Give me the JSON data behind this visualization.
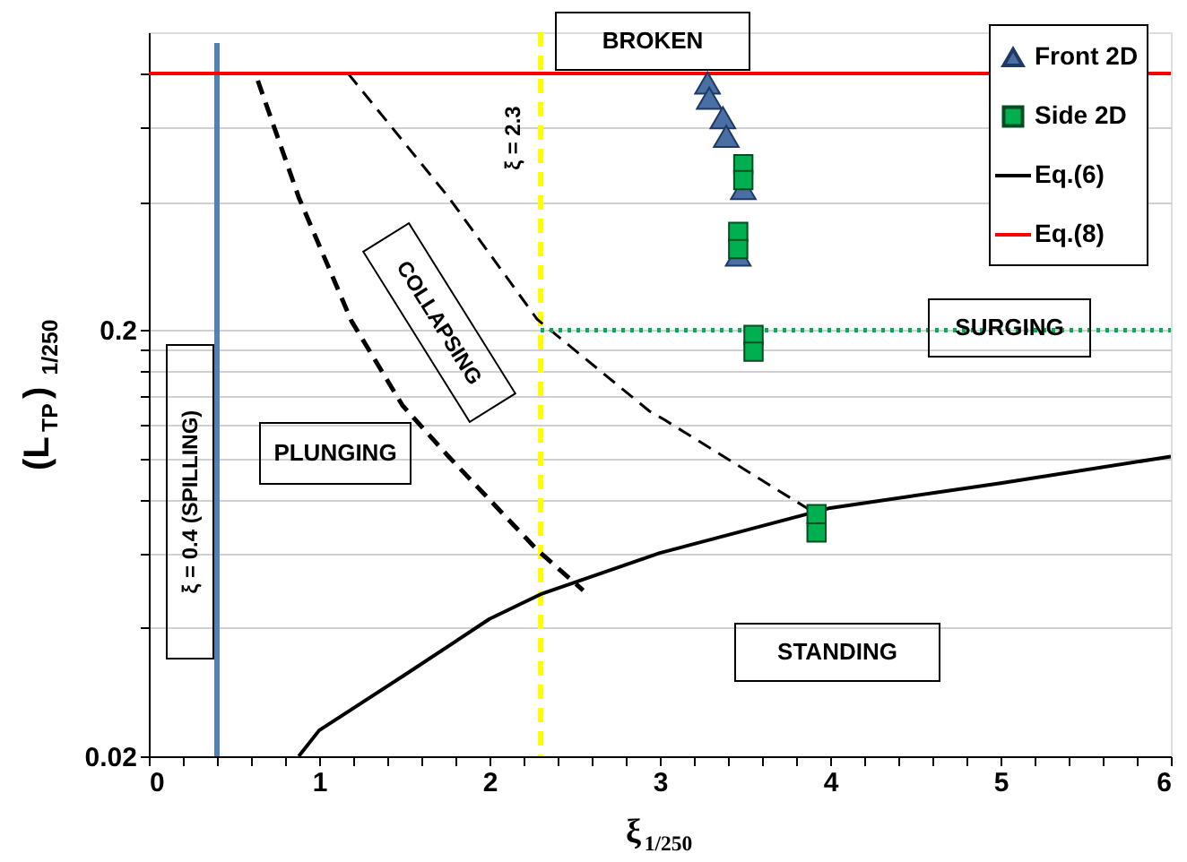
{
  "chart_data": {
    "type": "line",
    "xlabel": "ξ$_{1/250}$",
    "ylabel": "(L$_{TP}$)$_{1/250}$",
    "xlim": [
      0,
      6
    ],
    "ylim": [
      0.02,
      1
    ],
    "log": "y",
    "grid": "y",
    "legend": "top right",
    "xticks": [
      0,
      {
        "value": 0.2,
        "label": null
      },
      {
        "value": 0.4,
        "label": null
      },
      {
        "value": 0.6,
        "label": null
      },
      {
        "value": 0.8,
        "label": null
      },
      1,
      {
        "value": 1.2,
        "label": null
      },
      {
        "value": 1.4,
        "label": null
      },
      {
        "value": 1.6,
        "label": null
      },
      {
        "value": 1.8,
        "label": null
      },
      2,
      {
        "value": 2.2,
        "label": null
      },
      {
        "value": 2.4,
        "label": null
      },
      {
        "value": 2.6,
        "label": null
      },
      {
        "value": 2.8,
        "label": null
      },
      3,
      {
        "value": 3.2,
        "label": null
      },
      {
        "value": 3.4,
        "label": null
      },
      {
        "value": 3.6,
        "label": null
      },
      {
        "value": 3.8,
        "label": null
      },
      4,
      {
        "value": 4.2,
        "label": null
      },
      {
        "value": 4.4,
        "label": null
      },
      {
        "value": 4.6,
        "label": null
      },
      {
        "value": 4.8,
        "label": null
      },
      5,
      {
        "value": 5.2,
        "label": null
      },
      {
        "value": 5.4,
        "label": null
      },
      {
        "value": 5.6,
        "label": null
      },
      {
        "value": 5.8,
        "label": null
      },
      6
    ],
    "yticks": [
      0.02,
      {
        "value": 0.04,
        "label": null
      },
      {
        "value": 0.06,
        "label": null
      },
      {
        "value": 0.08,
        "label": null
      },
      {
        "value": 0.1,
        "label": null
      },
      {
        "value": 0.12,
        "label": null
      },
      {
        "value": 0.14,
        "label": null
      },
      {
        "value": 0.16,
        "label": null
      },
      {
        "value": 0.18,
        "label": null
      },
      0.2,
      {
        "value": 0.4,
        "label": null
      },
      {
        "value": 0.6,
        "label": null
      },
      {
        "value": 0.8,
        "label": null
      }
    ],
    "series": [
      {
        "type": "line",
        "color": "#000000",
        "line_style": "dashed",
        "x": [
          0.64,
          0.88,
          1.19,
          1.49,
          1.76,
          2.28,
          2.55
        ],
        "values": [
          0.77,
          0.41,
          0.21,
          0.133,
          0.101,
          0.061,
          0.049
        ]
      },
      {
        "type": "line",
        "color": "#000000",
        "line_style": "dashed",
        "x": [
          1.17,
          1.76,
          2.28,
          2.94,
          3.03,
          3.92
        ],
        "values": [
          0.8,
          0.41,
          0.212,
          0.129,
          0.123,
          0.074
        ]
      },
      {
        "type": "line",
        "color": "#00b050",
        "line_style": "dotted",
        "x": [
          2.3,
          6
        ],
        "values": [
          0.2,
          0.2
        ]
      },
      {
        "type": "scatter",
        "name": "Front 2D",
        "color": "#4a6fa5",
        "marker": "triangle",
        "x": [
          3.28,
          3.29,
          3.37,
          3.39,
          3.49,
          3.46
        ],
        "values": [
          0.76,
          0.7,
          0.63,
          0.57,
          0.43,
          0.3
        ]
      },
      {
        "type": "scatter",
        "name": "Side 2D",
        "color": "#00b050",
        "marker": "square",
        "x": [
          3.49,
          3.49,
          3.46,
          3.46,
          3.55,
          3.55,
          3.92,
          3.92
        ],
        "values": [
          0.49,
          0.45,
          0.34,
          0.31,
          0.195,
          0.178,
          0.074,
          0.067
        ]
      },
      {
        "name": "Eq.(6)",
        "color": "#000000",
        "line_style": "solid",
        "x": [
          0.88,
          1,
          1.5,
          2,
          2.3,
          3,
          4,
          5,
          6
        ],
        "values": [
          0.02,
          0.023,
          0.031,
          0.042,
          0.048,
          0.06,
          0.0765,
          0.0875,
          0.101
        ]
      },
      {
        "name": "Eq.(8)",
        "color": "#ff0000",
        "line_style": "solid",
        "x": [
          0,
          6
        ],
        "values": [
          0.8,
          0.8
        ]
      }
    ],
    "ref_lines": [
      {
        "axis": "x",
        "value": 0.4,
        "label": "ξ = 0.4 (SPILLING)",
        "color": "#4f81bd",
        "line_style": "solid"
      },
      {
        "axis": "x",
        "value": 2.3,
        "label": "ξ = 2.3",
        "color": "#ffff00",
        "line_style": "dashed"
      }
    ],
    "annotations": [
      "BROKEN",
      "COLLAPSING",
      "PLUNGING",
      "SURGING",
      "STANDING"
    ]
  }
}
